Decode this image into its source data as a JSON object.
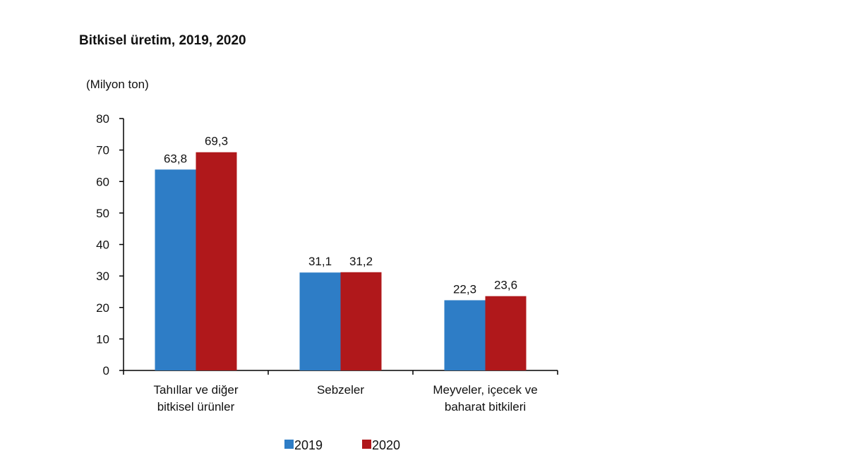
{
  "chart_data": {
    "type": "bar",
    "title": "Bitkisel üretim, 2019, 2020",
    "ylabel": "(Milyon ton)",
    "xlabel": "",
    "ylim": [
      0,
      80
    ],
    "yticks": [
      "0",
      "10",
      "20",
      "30",
      "40",
      "50",
      "60",
      "70",
      "80"
    ],
    "categories": [
      [
        "Tahıllar ve diğer",
        "bitkisel ürünler"
      ],
      [
        "Sebzeler"
      ],
      [
        "Meyveler, içecek ve",
        "baharat  bitkileri"
      ]
    ],
    "series": [
      {
        "name": "2019",
        "color": "#2E7DC6",
        "values": [
          63.8,
          31.1,
          22.3
        ],
        "labels": [
          "63,8",
          "31,1",
          "22,3"
        ]
      },
      {
        "name": "2020",
        "color": "#B0181B",
        "values": [
          69.3,
          31.2,
          23.6
        ],
        "labels": [
          "69,3",
          "31,2",
          "23,6"
        ]
      }
    ],
    "grid": false,
    "legend": "bottom"
  }
}
